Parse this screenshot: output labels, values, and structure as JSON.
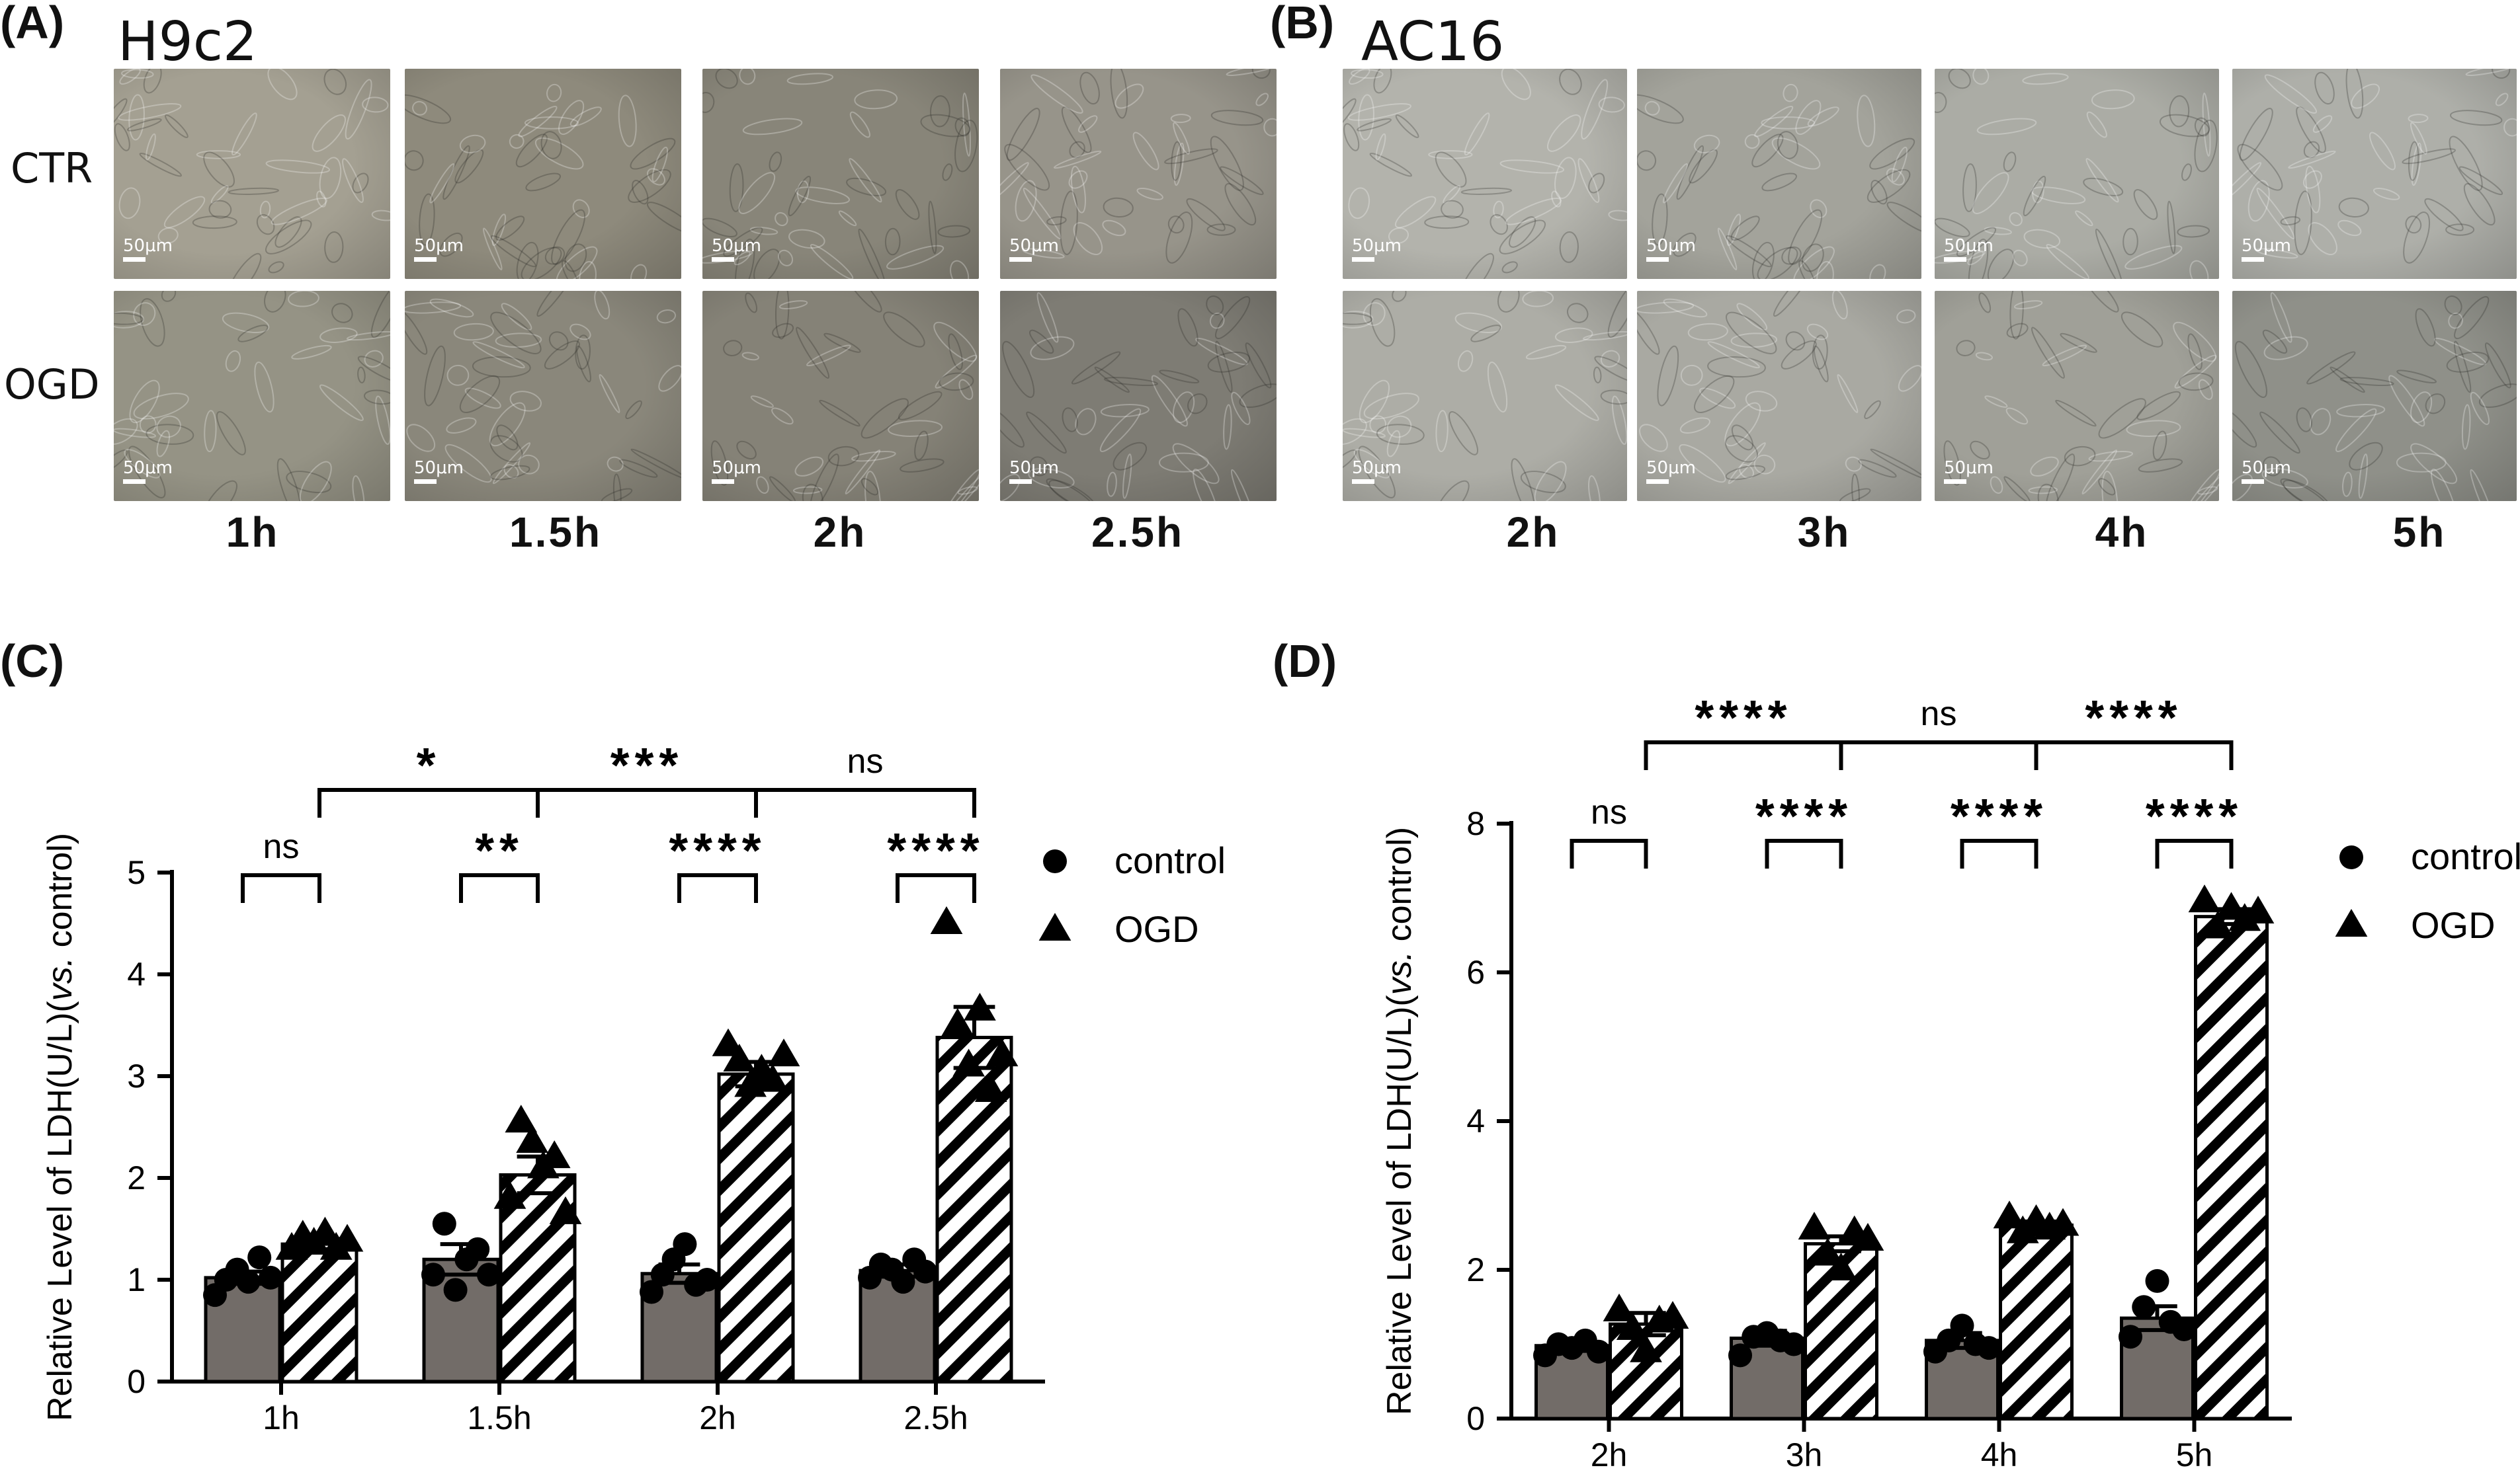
{
  "panel_labels": [
    "(A)",
    "(B)",
    "(C)",
    "(D)"
  ],
  "micrographs": {
    "panel_a": {
      "cell_line": "H9c2",
      "rows": [
        "CTR",
        "OGD"
      ],
      "times": [
        "1h",
        "1.5h",
        "2h",
        "2.5h"
      ],
      "scale_bar": "50μm",
      "tones": {
        "CTR": [
          "#a4a092",
          "#8e8a7c",
          "#888579",
          "#97948a"
        ],
        "OGD": [
          "#959385",
          "#8a877b",
          "#858277",
          "#7e7c74"
        ]
      }
    },
    "panel_b": {
      "cell_line": "AC16",
      "rows": [
        "CTR",
        "OGD"
      ],
      "times": [
        "2h",
        "3h",
        "4h",
        "5h"
      ],
      "scale_bar": "50μm",
      "tones": {
        "CTR": [
          "#b3b3ac",
          "#a3a39b",
          "#abaca5",
          "#aeafa9"
        ],
        "OGD": [
          "#adada6",
          "#a9a9a2",
          "#a0a098",
          "#8f9089"
        ]
      }
    }
  },
  "chart_data": [
    {
      "type": "bar",
      "panel": "(C)",
      "categories": [
        "1h",
        "1.5h",
        "2h",
        "2.5h"
      ],
      "series": [
        {
          "name": "control",
          "marker": "circle",
          "fill": "#726c68",
          "values": [
            1.02,
            1.2,
            1.06,
            1.09
          ],
          "sem": [
            0.06,
            0.15,
            0.09,
            0.06
          ],
          "points": [
            [
              0.85,
              1.0,
              1.1,
              0.98,
              1.22,
              1.02
            ],
            [
              1.05,
              1.55,
              0.9,
              1.2,
              1.3,
              1.05
            ],
            [
              0.88,
              1.05,
              1.2,
              1.35,
              0.95,
              1.0
            ],
            [
              1.02,
              1.15,
              1.1,
              0.98,
              1.2,
              1.08
            ]
          ]
        },
        {
          "name": "OGD",
          "marker": "triangle",
          "fill": "hatch",
          "values": [
            1.35,
            2.03,
            3.02,
            3.38
          ],
          "sem": [
            0.05,
            0.18,
            0.12,
            0.3
          ],
          "points": [
            [
              1.3,
              1.42,
              1.35,
              1.45,
              1.3,
              1.38
            ],
            [
              1.8,
              2.55,
              2.35,
              2.1,
              2.2,
              1.65
            ],
            [
              3.3,
              3.15,
              2.9,
              3.05,
              2.95,
              3.2
            ],
            [
              4.5,
              3.5,
              3.1,
              3.65,
              2.85,
              3.2
            ]
          ]
        }
      ],
      "ylabel": "Relative Level of LDH(U/L)(vs. control)",
      "ylim": [
        0,
        5
      ],
      "yticks": [
        0,
        1,
        2,
        3,
        4,
        5
      ],
      "legend": [
        "control",
        "OGD"
      ],
      "significance_within": [
        "ns",
        "**",
        "****",
        "****"
      ],
      "significance_between": [
        "*",
        "***",
        "ns"
      ]
    },
    {
      "type": "bar",
      "panel": "(D)",
      "categories": [
        "2h",
        "3h",
        "4h",
        "5h"
      ],
      "series": [
        {
          "name": "control",
          "marker": "circle",
          "fill": "#726c68",
          "values": [
            0.98,
            1.08,
            1.05,
            1.35
          ],
          "sem": [
            0.07,
            0.1,
            0.1,
            0.16
          ],
          "points": [
            [
              0.85,
              1.0,
              0.95,
              1.05,
              0.9
            ],
            [
              0.85,
              1.1,
              1.15,
              1.05,
              1.0
            ],
            [
              0.9,
              1.05,
              1.25,
              1.0,
              0.95
            ],
            [
              1.1,
              1.5,
              1.85,
              1.3,
              1.2
            ]
          ]
        },
        {
          "name": "OGD",
          "marker": "triangle",
          "fill": "hatch",
          "values": [
            1.27,
            2.35,
            2.6,
            6.75
          ],
          "sem": [
            0.15,
            0.1,
            0.05,
            0.1
          ],
          "points": [
            [
              1.45,
              1.2,
              0.9,
              1.3,
              1.35
            ],
            [
              2.55,
              2.2,
              2.0,
              2.5,
              2.4
            ],
            [
              2.7,
              2.5,
              2.65,
              2.55,
              2.6
            ],
            [
              6.95,
              6.6,
              6.85,
              6.7,
              6.8
            ]
          ]
        }
      ],
      "ylabel": "Relative Level of LDH(U/L)(vs. control)",
      "ylim": [
        0,
        8
      ],
      "yticks": [
        0,
        2,
        4,
        6,
        8
      ],
      "legend": [
        "control",
        "OGD"
      ],
      "significance_within": [
        "ns",
        "****",
        "****",
        "****"
      ],
      "significance_between": [
        "****",
        "ns",
        "****"
      ]
    }
  ]
}
